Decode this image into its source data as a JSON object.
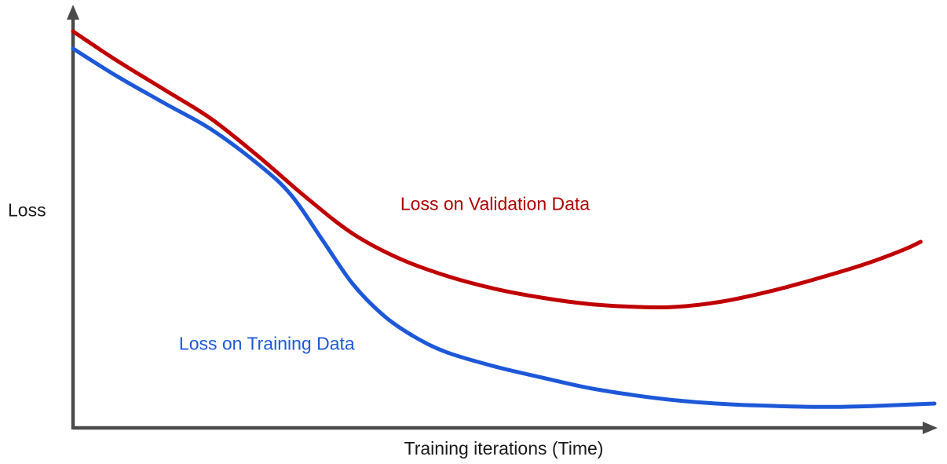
{
  "page": {
    "background": "#ffffff"
  },
  "chart_data": {
    "type": "line",
    "title": "",
    "xlabel": "Training iterations (Time)",
    "ylabel": "Loss",
    "xlim": [
      0,
      100
    ],
    "ylim": [
      0,
      100
    ],
    "grid": false,
    "legend_position": "inline-annotations",
    "axis_color": "#4a4a4a",
    "series": [
      {
        "name": "Loss on Validation Data",
        "color": "#c00000",
        "x": [
          0,
          5.2,
          10.7,
          16.1,
          21.6,
          27.1,
          32.5,
          38,
          43.5,
          49,
          54.4,
          59.9,
          65.4,
          69.9,
          75.4,
          80.9,
          86.3,
          91.8,
          96.4,
          98.4
        ],
        "y": [
          94.4,
          87.3,
          80.4,
          73.5,
          64.5,
          54.8,
          46.2,
          40.2,
          36.1,
          33.1,
          31,
          29.5,
          28.8,
          28.8,
          30.1,
          32.5,
          35.5,
          38.9,
          42.4,
          44.3
        ]
      },
      {
        "name": "Loss on Training Data",
        "color": "#1d58d8",
        "x": [
          0,
          5.2,
          10.7,
          16.1,
          21.6,
          25.3,
          28.9,
          32.5,
          36.2,
          39.8,
          43.5,
          49,
          54.4,
          59.9,
          65.4,
          70.8,
          76.3,
          81.8,
          87.2,
          92.7,
          100
        ],
        "y": [
          90.3,
          83.6,
          77.2,
          71,
          62.6,
          55.5,
          44.9,
          34.2,
          26.5,
          21.5,
          17.9,
          14.6,
          12,
          9.5,
          7.7,
          6.4,
          5.6,
          5.2,
          5,
          5.2,
          5.8
        ]
      }
    ],
    "annotations": [
      {
        "text": "Loss on Validation Data",
        "x": 38,
        "y": 53.3,
        "color": "#b00000"
      },
      {
        "text": "Loss on Training Data",
        "x": 12.3,
        "y": 20,
        "color": "#1d58d8"
      }
    ]
  }
}
